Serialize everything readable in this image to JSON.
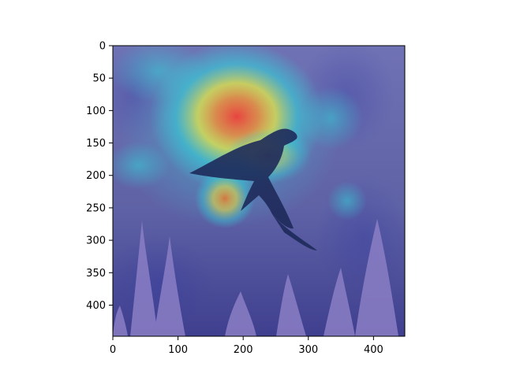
{
  "chart_data": {
    "type": "heatmap",
    "title": "",
    "xlabel": "",
    "ylabel": "",
    "xlim": [
      0,
      448
    ],
    "ylim": [
      448,
      0
    ],
    "x_ticks": [
      0,
      100,
      200,
      300,
      400
    ],
    "y_ticks": [
      0,
      50,
      100,
      150,
      200,
      250,
      300,
      350,
      400
    ],
    "x_tick_labels": [
      "0",
      "100",
      "200",
      "300",
      "400"
    ],
    "y_tick_labels": [
      "0",
      "50",
      "100",
      "150",
      "200",
      "250",
      "300",
      "350",
      "400"
    ],
    "image": "bird in flight over lavender with saliency heatmap overlay",
    "colormap": "jet",
    "colors": {
      "background": "#6f72b4",
      "low": "#2a2fa0",
      "mid": "#35d0d8",
      "high_yellow": "#f2ea3c",
      "peak_red": "#f0403a",
      "bird": "#1e2a5a",
      "lavender": "#8b7fc6"
    },
    "hotspots": [
      {
        "x": 190,
        "y": 110,
        "intensity": 1.0
      },
      {
        "x": 175,
        "y": 235,
        "intensity": 0.75
      },
      {
        "x": 240,
        "y": 170,
        "intensity": 0.7
      }
    ]
  }
}
